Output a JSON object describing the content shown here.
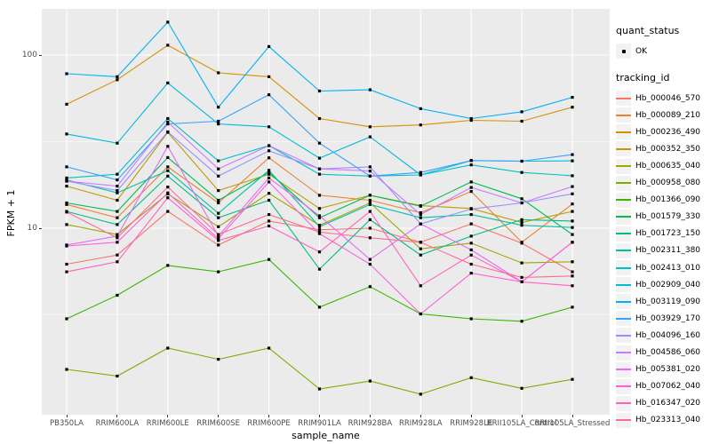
{
  "axes": {
    "x_title": "sample_name",
    "y_title": "FPKM + 1",
    "y_ticks": [
      {
        "value": 100,
        "label": "100"
      },
      {
        "value": 10,
        "label": "10"
      }
    ],
    "y_minor_gridlines": [
      31.623,
      3.1623
    ]
  },
  "legend": {
    "quant_title": "quant_status",
    "quant_items": [
      {
        "label": "OK",
        "marker": "black-point"
      }
    ],
    "tracking_title": "tracking_id"
  },
  "colors": {
    "panel_bg": "#EBEBEB",
    "gridline": "#FFFFFF",
    "tick_text": "#4D4D4D",
    "axis_title_text": "#000000",
    "point": "#000000",
    "legend_key_bg": "#F2F2F2"
  },
  "chart_data": {
    "type": "line",
    "x_type": "categorical",
    "title": "",
    "xlabel": "sample_name",
    "ylabel": "FPKM + 1",
    "y_scale": "log10",
    "ylim": [
      0.84,
      185
    ],
    "grid": true,
    "legend_position": "right",
    "point_marker": "small black point (quant_status OK)",
    "categories": [
      "PB350LA",
      "RRIM600LA",
      "RRIM600LE",
      "RRIM600SE",
      "RRIM600PE",
      "RRIM901LA",
      "RRIM928BA",
      "RRIM928LA",
      "RRIM928LE",
      "RRII105LA_Control",
      "RRII105LA_Stressed"
    ],
    "series": [
      {
        "name": "Hb_000046_570",
        "color": "#F8766D",
        "values": [
          6.2,
          7.0,
          12.5,
          8.0,
          11.0,
          9.8,
          10.0,
          8.3,
          10.6,
          8.2,
          5.6
        ]
      },
      {
        "name": "Hb_000089_210",
        "color": "#EA8331",
        "values": [
          13.7,
          11.5,
          22.6,
          14.0,
          25.5,
          15.5,
          14.5,
          12.3,
          16.3,
          8.3,
          13.8
        ]
      },
      {
        "name": "Hb_000236_490",
        "color": "#D89000",
        "values": [
          52,
          72,
          114,
          79,
          75,
          43,
          38.5,
          39.5,
          42,
          41.5,
          50
        ]
      },
      {
        "name": "Hb_000352_350",
        "color": "#C09B00",
        "values": [
          17.5,
          14.5,
          35.8,
          16.5,
          20.5,
          13.0,
          15.5,
          13.5,
          13.0,
          10.8,
          12.5
        ]
      },
      {
        "name": "Hb_000635_040",
        "color": "#A3A500",
        "values": [
          10.5,
          9.2,
          15.8,
          10.2,
          15.9,
          10.4,
          14.0,
          7.6,
          8.2,
          6.3,
          6.4
        ]
      },
      {
        "name": "Hb_000958_080",
        "color": "#7CAE00",
        "values": [
          1.53,
          1.4,
          2.03,
          1.75,
          2.03,
          1.18,
          1.31,
          1.1,
          1.37,
          1.19,
          1.34
        ]
      },
      {
        "name": "Hb_001366_090",
        "color": "#39B600",
        "values": [
          3.0,
          4.1,
          6.1,
          5.6,
          6.6,
          3.5,
          4.6,
          3.2,
          3.0,
          2.9,
          3.5
        ]
      },
      {
        "name": "Hb_001579_330",
        "color": "#00BB4E",
        "values": [
          14.0,
          12.5,
          25.6,
          14.5,
          21.0,
          11.5,
          15.5,
          13.4,
          18.5,
          14.8,
          9.2
        ]
      },
      {
        "name": "Hb_001723_150",
        "color": "#00BF7D",
        "values": [
          12.5,
          10.5,
          20.0,
          11.5,
          14.5,
          5.8,
          11.2,
          7.0,
          9.0,
          11.2,
          11.0
        ]
      },
      {
        "name": "Hb_002311_380",
        "color": "#00C1A3",
        "values": [
          19.0,
          16.0,
          21.5,
          12.2,
          21.6,
          10.2,
          13.7,
          11.5,
          12.0,
          10.4,
          10.1
        ]
      },
      {
        "name": "Hb_002413_010",
        "color": "#00BFC4",
        "values": [
          19.5,
          20.5,
          43,
          24.5,
          30,
          20.5,
          20.0,
          20.3,
          23.2,
          21.0,
          20.1
        ]
      },
      {
        "name": "Hb_002909_040",
        "color": "#00BBDA",
        "values": [
          35,
          31,
          69,
          40,
          38.5,
          25.4,
          33.7,
          20.3,
          24.6,
          24.4,
          24.5
        ]
      },
      {
        "name": "Hb_003119_090",
        "color": "#00B0F6",
        "values": [
          78,
          75,
          155,
          50,
          112,
          62,
          63,
          49,
          43,
          47,
          57
        ]
      },
      {
        "name": "Hb_003929_170",
        "color": "#35A2FF",
        "values": [
          22.6,
          19.0,
          40,
          41.5,
          59,
          31,
          20.0,
          21.0,
          24.6,
          24.4,
          26.6
        ]
      },
      {
        "name": "Hb_004096_160",
        "color": "#9590FF",
        "values": [
          18.7,
          16.5,
          36,
          20.0,
          28,
          22.0,
          22.6,
          10.6,
          12.9,
          14.0,
          15.8
        ]
      },
      {
        "name": "Hb_004586_060",
        "color": "#C77CFF",
        "values": [
          18.7,
          17.5,
          41,
          22.0,
          30,
          22.0,
          21.4,
          12.0,
          17.2,
          14.0,
          17.4
        ]
      },
      {
        "name": "Hb_005381_020",
        "color": "#E76BF3",
        "values": [
          8.0,
          9.0,
          29.7,
          9.0,
          19.5,
          11.8,
          6.6,
          10.6,
          7.5,
          4.9,
          8.3
        ]
      },
      {
        "name": "Hb_007062_040",
        "color": "#FA62DB",
        "values": [
          7.9,
          8.3,
          16.0,
          8.7,
          18.5,
          9.3,
          6.2,
          3.2,
          5.5,
          4.9,
          8.3
        ]
      },
      {
        "name": "Hb_016347_020",
        "color": "#FF62BC",
        "values": [
          5.6,
          6.4,
          15.0,
          8.5,
          10.3,
          7.3,
          12.5,
          4.65,
          7.0,
          4.9,
          4.65
        ]
      },
      {
        "name": "Hb_023313_040",
        "color": "#FF6A98",
        "values": [
          12.4,
          8.8,
          17.3,
          9.2,
          12.0,
          9.5,
          8.8,
          8.3,
          6.2,
          5.2,
          5.3
        ]
      }
    ]
  }
}
